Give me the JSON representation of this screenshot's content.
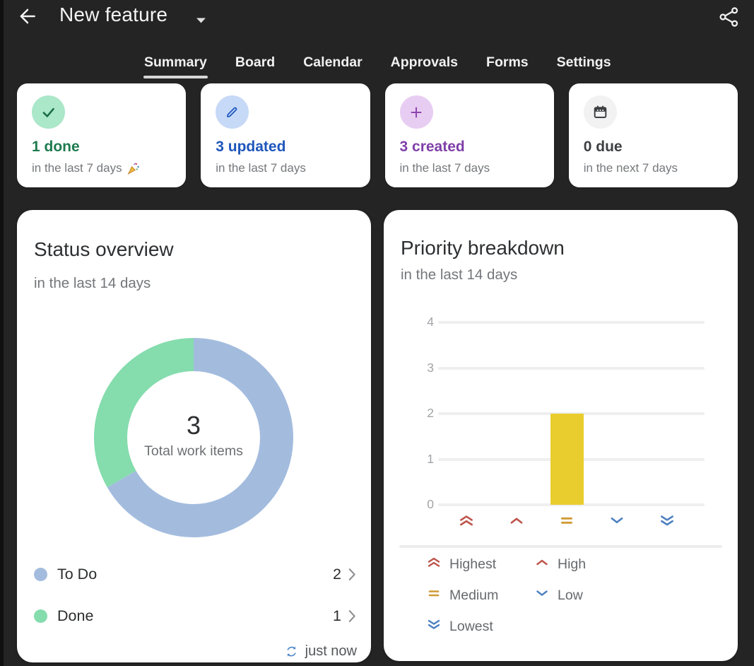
{
  "header": {
    "title": "New feature",
    "back_icon": "back-arrow",
    "share_icon": "share"
  },
  "tabs": {
    "items": [
      {
        "label": "Summary",
        "active": true
      },
      {
        "label": "Board",
        "active": false
      },
      {
        "label": "Calendar",
        "active": false
      },
      {
        "label": "Approvals",
        "active": false
      },
      {
        "label": "Forms",
        "active": false
      },
      {
        "label": "Settings",
        "active": false
      }
    ]
  },
  "stat_cards": [
    {
      "title": "1 done",
      "subtitle": "in the last 7 days",
      "emoji": "🎉",
      "icon": "check-icon",
      "title_color": "#1e7b4f",
      "icon_color": "#1c6f49",
      "circle_color": "#abe7c9"
    },
    {
      "title": "3 updated",
      "subtitle": "in the last 7 days",
      "emoji": "",
      "icon": "pencil-icon",
      "title_color": "#1e56bb",
      "icon_color": "#1d57c0",
      "circle_color": "#c6d9f7"
    },
    {
      "title": "3 created",
      "subtitle": "in the last 7 days",
      "emoji": "",
      "icon": "plus-icon",
      "title_color": "#7e3fa8",
      "icon_color": "#8c44ae",
      "circle_color": "#e8cdf2"
    },
    {
      "title": "0 due",
      "subtitle": "in the next 7 days",
      "emoji": "",
      "icon": "calendar-icon",
      "title_color": "#3d4043",
      "icon_color": "#3d4043",
      "circle_color": "#f2f2f2"
    }
  ],
  "status_overview": {
    "title": "Status overview",
    "subtitle": "in the last 14 days",
    "center_value": "3",
    "center_label": "Total work items",
    "rows": [
      {
        "label": "To Do",
        "value": "2"
      },
      {
        "label": "Done",
        "value": "1"
      }
    ],
    "updated_text": "just now"
  },
  "priority_breakdown": {
    "title": "Priority breakdown",
    "subtitle": "in the last 14 days",
    "legend": [
      {
        "label": "Highest",
        "icon": "priority-highest-icon",
        "color": "#bd544b"
      },
      {
        "label": "High",
        "icon": "priority-high-icon",
        "color": "#bd544b"
      },
      {
        "label": "Medium",
        "icon": "priority-medium-icon",
        "color": "#d09a35"
      },
      {
        "label": "Low",
        "icon": "priority-low-icon",
        "color": "#4d7fc0"
      },
      {
        "label": "Lowest",
        "icon": "priority-lowest-icon",
        "color": "#4d7fc0"
      }
    ]
  },
  "chart_data": [
    {
      "type": "pie",
      "variant": "donut",
      "title": "Status overview",
      "period": "in the last 14 days",
      "labels": [
        "To Do",
        "Done"
      ],
      "values": [
        2,
        1
      ],
      "colors": [
        "#a3bcde",
        "#85dcad"
      ],
      "total": 3,
      "center_text": "3",
      "center_label": "Total work items",
      "legend_position": "bottom"
    },
    {
      "type": "bar",
      "title": "Priority breakdown",
      "period": "in the last 14 days",
      "categories": [
        "Highest",
        "High",
        "Medium",
        "Low",
        "Lowest"
      ],
      "values": [
        0,
        0,
        2,
        0,
        0
      ],
      "bar_color": "#e9cd2f",
      "ylim": [
        0,
        4
      ],
      "yticks": [
        4,
        3,
        2,
        1,
        0
      ],
      "grid": true,
      "legend_position": "bottom"
    }
  ]
}
